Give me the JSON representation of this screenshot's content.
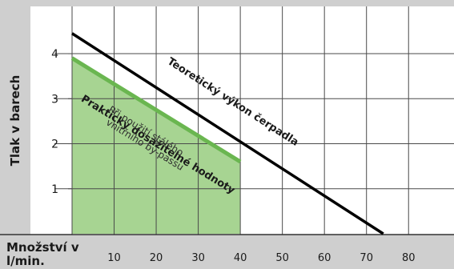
{
  "colors": {
    "background": "#cfcfcf",
    "plot_background": "#ffffff",
    "grid": "#4a4a4a",
    "practical_fill": "#a7d492",
    "practical_line": "#6ab650",
    "theoretical_line": "#000000",
    "text": "#1a1a1a"
  },
  "chart_data": {
    "type": "line",
    "title": "",
    "xlabel_lines": [
      "Množství v",
      "l/min."
    ],
    "ylabel": "Tlak v barech",
    "xlim": [
      -10,
      89
    ],
    "ylim": [
      0,
      5.05
    ],
    "x_ticks": [
      10,
      20,
      30,
      40,
      50,
      60,
      70,
      80
    ],
    "y_ticks": [
      1,
      2,
      3,
      4
    ],
    "grid": true,
    "series": [
      {
        "name": "Teoretický výkon čerpadla",
        "style": "line",
        "points": [
          [
            0,
            4.45
          ],
          [
            74,
            0
          ]
        ]
      },
      {
        "name": "Prakticky dosažitelné hodnoty",
        "style": "area",
        "points": [
          [
            0,
            3.9
          ],
          [
            40,
            1.6
          ]
        ],
        "fill_to_x": 40
      }
    ],
    "annotations": [
      {
        "text_lines": [
          "Při použití stálého",
          "vnitřního by-passu"
        ]
      }
    ]
  }
}
